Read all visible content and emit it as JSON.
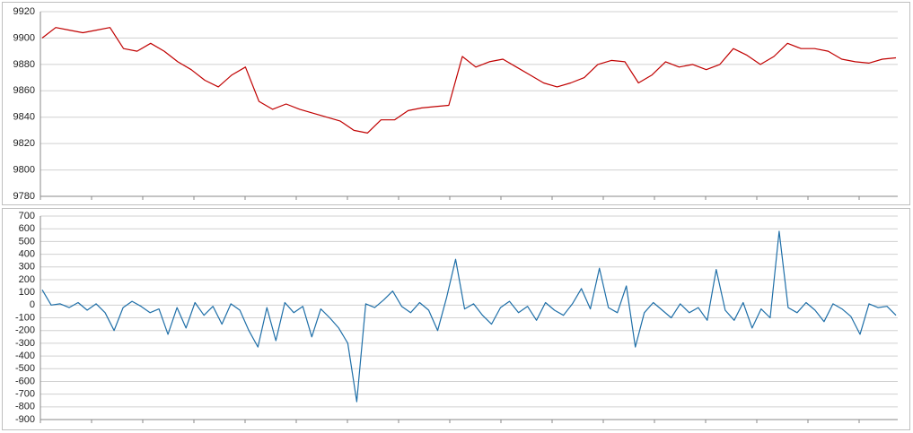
{
  "chart_data": [
    {
      "type": "line",
      "color": "#c00000",
      "grid": true,
      "ylim": [
        9780,
        9920
      ],
      "yticks": [
        9780,
        9800,
        9820,
        9840,
        9860,
        9880,
        9900,
        9920
      ],
      "values": [
        9900,
        9908,
        9906,
        9904,
        9906,
        9908,
        9892,
        9890,
        9896,
        9890,
        9882,
        9876,
        9868,
        9863,
        9872,
        9878,
        9852,
        9846,
        9850,
        9846,
        9843,
        9840,
        9837,
        9830,
        9828,
        9838,
        9838,
        9845,
        9847,
        9848,
        9849,
        9886,
        9878,
        9882,
        9884,
        9878,
        9872,
        9866,
        9863,
        9866,
        9870,
        9880,
        9883,
        9882,
        9866,
        9872,
        9882,
        9878,
        9880,
        9876,
        9880,
        9892,
        9887,
        9880,
        9886,
        9896,
        9892,
        9892,
        9890,
        9884,
        9882,
        9881,
        9884,
        9885
      ]
    },
    {
      "type": "line",
      "color": "#1f6fa8",
      "grid": true,
      "ylim": [
        -900,
        700
      ],
      "yticks": [
        -900,
        -800,
        -700,
        -600,
        -500,
        -400,
        -300,
        -200,
        -100,
        0,
        100,
        200,
        300,
        400,
        500,
        600,
        700
      ],
      "values": [
        120,
        0,
        10,
        -20,
        20,
        -40,
        10,
        -60,
        -200,
        -20,
        30,
        -10,
        -60,
        -30,
        -230,
        -20,
        -180,
        20,
        -80,
        -10,
        -150,
        10,
        -40,
        -200,
        -330,
        -20,
        -280,
        20,
        -60,
        -10,
        -250,
        -30,
        -100,
        -180,
        -300,
        -760,
        10,
        -20,
        40,
        110,
        -10,
        -60,
        20,
        -40,
        -200,
        60,
        360,
        -30,
        10,
        -80,
        -150,
        -20,
        30,
        -60,
        -10,
        -120,
        20,
        -40,
        -80,
        10,
        130,
        -30,
        290,
        -20,
        -60,
        150,
        -330,
        -60,
        20,
        -40,
        -100,
        10,
        -60,
        -20,
        -120,
        280,
        -40,
        -120,
        20,
        -180,
        -30,
        -100,
        580,
        -20,
        -60,
        20,
        -40,
        -130,
        10,
        -30,
        -90,
        -230,
        10,
        -20,
        -10,
        -80
      ]
    }
  ]
}
